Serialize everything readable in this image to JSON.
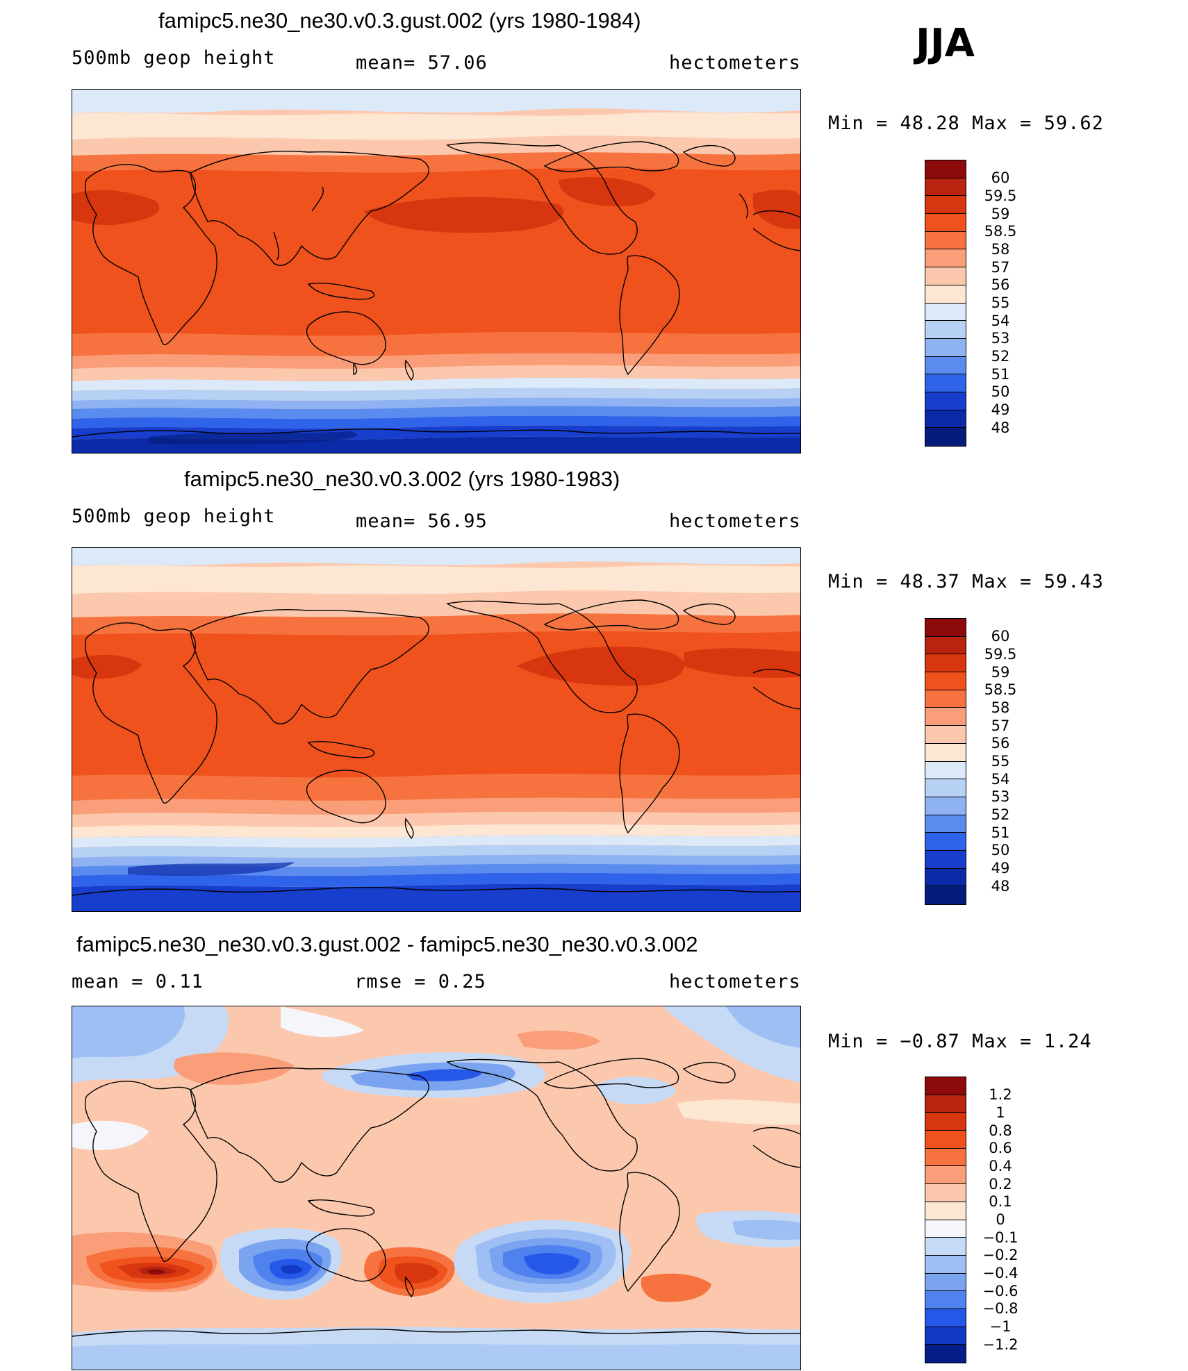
{
  "season": "JJA",
  "panels": [
    {
      "title": "famipc5.ne30_ne30.v0.3.gust.002 (yrs 1980-1984)",
      "left_label": "500mb  geop  height",
      "center_label": "mean=   57.06",
      "units": "hectometers",
      "minmax": "Min  =    48.28  Max  =    59.62",
      "colorbar_labels": [
        "60",
        "59.5",
        "59",
        "58.5",
        "58",
        "57",
        "56",
        "55",
        "54",
        "53",
        "52",
        "51",
        "50",
        "49",
        "48"
      ]
    },
    {
      "title": "famipc5.ne30_ne30.v0.3.002 (yrs 1980-1983)",
      "left_label": "500mb  geop  height",
      "center_label": "mean=   56.95",
      "units": "hectometers",
      "minmax": "Min  =    48.37  Max  =    59.43",
      "colorbar_labels": [
        "60",
        "59.5",
        "59",
        "58.5",
        "58",
        "57",
        "56",
        "55",
        "54",
        "53",
        "52",
        "51",
        "50",
        "49",
        "48"
      ]
    },
    {
      "title": "famipc5.ne30_ne30.v0.3.gust.002 - famipc5.ne30_ne30.v0.3.002",
      "left_label": "mean  =     0.11",
      "center_label": "rmse  =     0.25",
      "units": "hectometers",
      "minmax": "Min  =    −0.87  Max  =     1.24",
      "colorbar_labels": [
        "1.2",
        "1",
        "0.8",
        "0.6",
        "0.4",
        "0.2",
        "0.1",
        "0",
        "−0.1",
        "−0.2",
        "−0.4",
        "−0.6",
        "−0.8",
        "−1",
        "−1.2"
      ]
    }
  ],
  "colors": {
    "abs_scale": [
      "#8c0a0a",
      "#b82410",
      "#d8360f",
      "#f0521e",
      "#f6733f",
      "#fa9e79",
      "#fcc8ad",
      "#fde6d2",
      "#dce9f8",
      "#b7d1f5",
      "#8fb2f2",
      "#5a8cf0",
      "#2f63ea",
      "#173ecc",
      "#0a2aa8",
      "#041c7a"
    ],
    "diff_scale": [
      "#8c0a0a",
      "#b82410",
      "#d8360f",
      "#f0521e",
      "#f6733f",
      "#fa9e79",
      "#fcc8ad",
      "#fde6d2",
      "#f5f6fb",
      "#c6daf6",
      "#9dbff3",
      "#7aa4f0",
      "#4f82ee",
      "#2558e8",
      "#1338c4",
      "#031e86"
    ]
  }
}
